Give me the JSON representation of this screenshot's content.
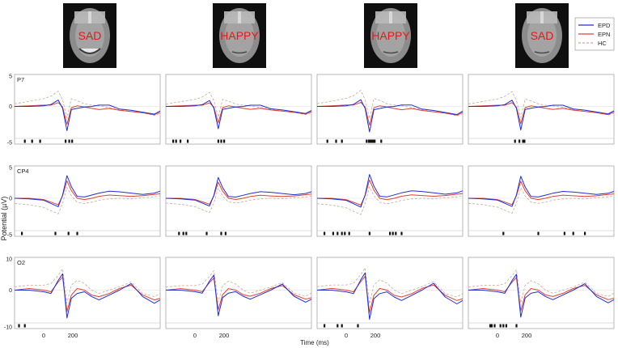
{
  "chart_data": {
    "type": "line",
    "title": "",
    "xlabel": "Time (ms)",
    "ylabel": "Potential (µV)",
    "x_ticks": [
      0,
      200
    ],
    "xlim": [
      -200,
      800
    ],
    "conditions": [
      {
        "face_label": "SAD",
        "face": "smiling"
      },
      {
        "face_label": "HAPPY",
        "face": "neutral"
      },
      {
        "face_label": "HAPPY",
        "face": "neutral"
      },
      {
        "face_label": "SAD",
        "face": "neutral"
      }
    ],
    "legend": [
      {
        "name": "EPD",
        "color": "#1f2fd6",
        "style": "solid"
      },
      {
        "name": "EPN",
        "color": "#e0412f",
        "style": "solid"
      },
      {
        "name": "HC",
        "color": "#c9a89a",
        "style": "dashed"
      }
    ],
    "electrodes": [
      {
        "name": "P7",
        "ylim": [
          -5,
          5
        ],
        "top_tick": "5",
        "mid_tick": "0",
        "bottom_tick": "-5",
        "series": {
          "EPD": {
            "t": [
              -200,
              -100,
              0,
              50,
              100,
              130,
              160,
              190,
              230,
              280,
              330,
              380,
              450,
              520,
              600,
              680,
              760,
              800
            ],
            "v": [
              0,
              0,
              0.1,
              0.3,
              1,
              -0.3,
              -3.8,
              -0.5,
              -0.3,
              -0.1,
              0,
              0.2,
              0.2,
              -0.4,
              -0.6,
              -0.9,
              -1.2,
              -0.7
            ]
          },
          "EPN": {
            "t": [
              -200,
              -100,
              0,
              50,
              100,
              130,
              160,
              190,
              230,
              280,
              330,
              380,
              450,
              520,
              600,
              680,
              760,
              800
            ],
            "v": [
              0,
              0.1,
              0.2,
              0.2,
              0.6,
              -0.1,
              -2.8,
              -0.2,
              0.1,
              -0.1,
              -0.3,
              -0.5,
              -0.3,
              -0.6,
              -0.8,
              -1.0,
              -1.3,
              -0.9
            ]
          },
          "HC": {
            "t": [
              -200,
              -100,
              0,
              50,
              100,
              130,
              160,
              190,
              230,
              280,
              330,
              380,
              450,
              520,
              600,
              680,
              760,
              800
            ],
            "v": [
              0.4,
              0.8,
              1.2,
              1.6,
              2.4,
              1.0,
              -1.8,
              1.2,
              0.9,
              0.4,
              0.2,
              0.1,
              -0.2,
              -0.5,
              -0.8,
              -1.0,
              -1.4,
              -1.1
            ]
          }
        }
      },
      {
        "name": "CP4",
        "ylim": [
          -5,
          5
        ],
        "top_tick": "5",
        "mid_tick": "0",
        "bottom_tick": "-5",
        "series": {
          "EPD": {
            "t": [
              -200,
              -100,
              0,
              50,
              100,
              130,
              160,
              190,
              230,
              280,
              330,
              380,
              450,
              520,
              600,
              680,
              760,
              800
            ],
            "v": [
              0,
              -0.1,
              -0.3,
              -0.8,
              -1.3,
              0.5,
              3.5,
              1.8,
              0.3,
              0.2,
              0.5,
              0.8,
              1.1,
              1.0,
              0.8,
              0.6,
              0.8,
              1.1
            ]
          },
          "EPN": {
            "t": [
              -200,
              -100,
              0,
              50,
              100,
              130,
              160,
              190,
              230,
              280,
              330,
              380,
              450,
              520,
              600,
              680,
              760,
              800
            ],
            "v": [
              0,
              0,
              -0.2,
              -0.6,
              -1.0,
              0.4,
              2.7,
              1.2,
              0,
              -0.2,
              0,
              0.3,
              0.5,
              0.4,
              0.3,
              0.4,
              0.6,
              0.7
            ]
          },
          "HC": {
            "t": [
              -200,
              -100,
              0,
              50,
              100,
              130,
              160,
              190,
              230,
              280,
              330,
              380,
              450,
              520,
              600,
              680,
              760,
              800
            ],
            "v": [
              -0.8,
              -1.0,
              -1.4,
              -1.9,
              -2.4,
              -0.8,
              1.7,
              0.4,
              -0.6,
              -0.8,
              -0.6,
              -0.3,
              -0.1,
              0,
              -0.1,
              0.1,
              0.2,
              0.4
            ]
          }
        }
      },
      {
        "name": "O2",
        "ylim": [
          -10,
          10
        ],
        "top_tick": "10",
        "mid_tick": "0",
        "bottom_tick": "-10",
        "series": {
          "EPD": {
            "t": [
              -200,
              -100,
              0,
              50,
              100,
              130,
              160,
              190,
              230,
              280,
              330,
              380,
              450,
              520,
              600,
              680,
              760,
              800
            ],
            "v": [
              0,
              0,
              -0.5,
              -1.0,
              3.0,
              5.0,
              -8.5,
              -2.5,
              -1.0,
              -0.5,
              -2.0,
              -3.0,
              -1.5,
              0,
              2.0,
              -2.0,
              -4.0,
              -3.0
            ]
          },
          "EPN": {
            "t": [
              -200,
              -100,
              0,
              50,
              100,
              130,
              160,
              190,
              230,
              280,
              330,
              380,
              450,
              520,
              600,
              680,
              760,
              800
            ],
            "v": [
              0,
              0.5,
              0,
              -0.5,
              2.5,
              4.0,
              -6.5,
              -1.5,
              0.5,
              0,
              -1.5,
              -2.0,
              -1.0,
              0.5,
              1.5,
              -1.5,
              -3.0,
              -2.5
            ]
          },
          "HC": {
            "t": [
              -200,
              -100,
              0,
              50,
              100,
              130,
              160,
              190,
              230,
              280,
              330,
              380,
              450,
              520,
              600,
              680,
              760,
              800
            ],
            "v": [
              1.0,
              1.5,
              1.5,
              2.0,
              4.5,
              6.5,
              -4.0,
              1.5,
              3.0,
              2.0,
              0,
              -1.0,
              0,
              1.0,
              2.5,
              -1.0,
              -2.0,
              -1.0
            ]
          }
        }
      }
    ],
    "significance_marks": [
      [
        [
          -130,
          -80,
          -25,
          150,
          175,
          195
        ],
        [
          -150,
          -130,
          -100,
          -50,
          160,
          180,
          200
        ],
        [
          -130,
          -70,
          -30,
          140,
          155,
          165,
          175,
          185,
          195,
          240
        ],
        [
          120,
          150,
          175,
          185
        ]
      ],
      [
        [
          -150,
          80,
          170,
          230
        ],
        [
          -110,
          -80,
          -60,
          80,
          180,
          210
        ],
        [
          -150,
          -90,
          -60,
          -30,
          -10,
          20,
          160,
          300,
          320,
          340,
          380
        ],
        [
          40,
          280,
          460,
          520,
          600
        ]
      ],
      [
        [
          -170,
          -130
        ],
        [],
        [
          -150,
          -60,
          -30,
          80
        ],
        [
          -50,
          -40,
          -20,
          20,
          40,
          60,
          130
        ]
      ]
    ]
  }
}
